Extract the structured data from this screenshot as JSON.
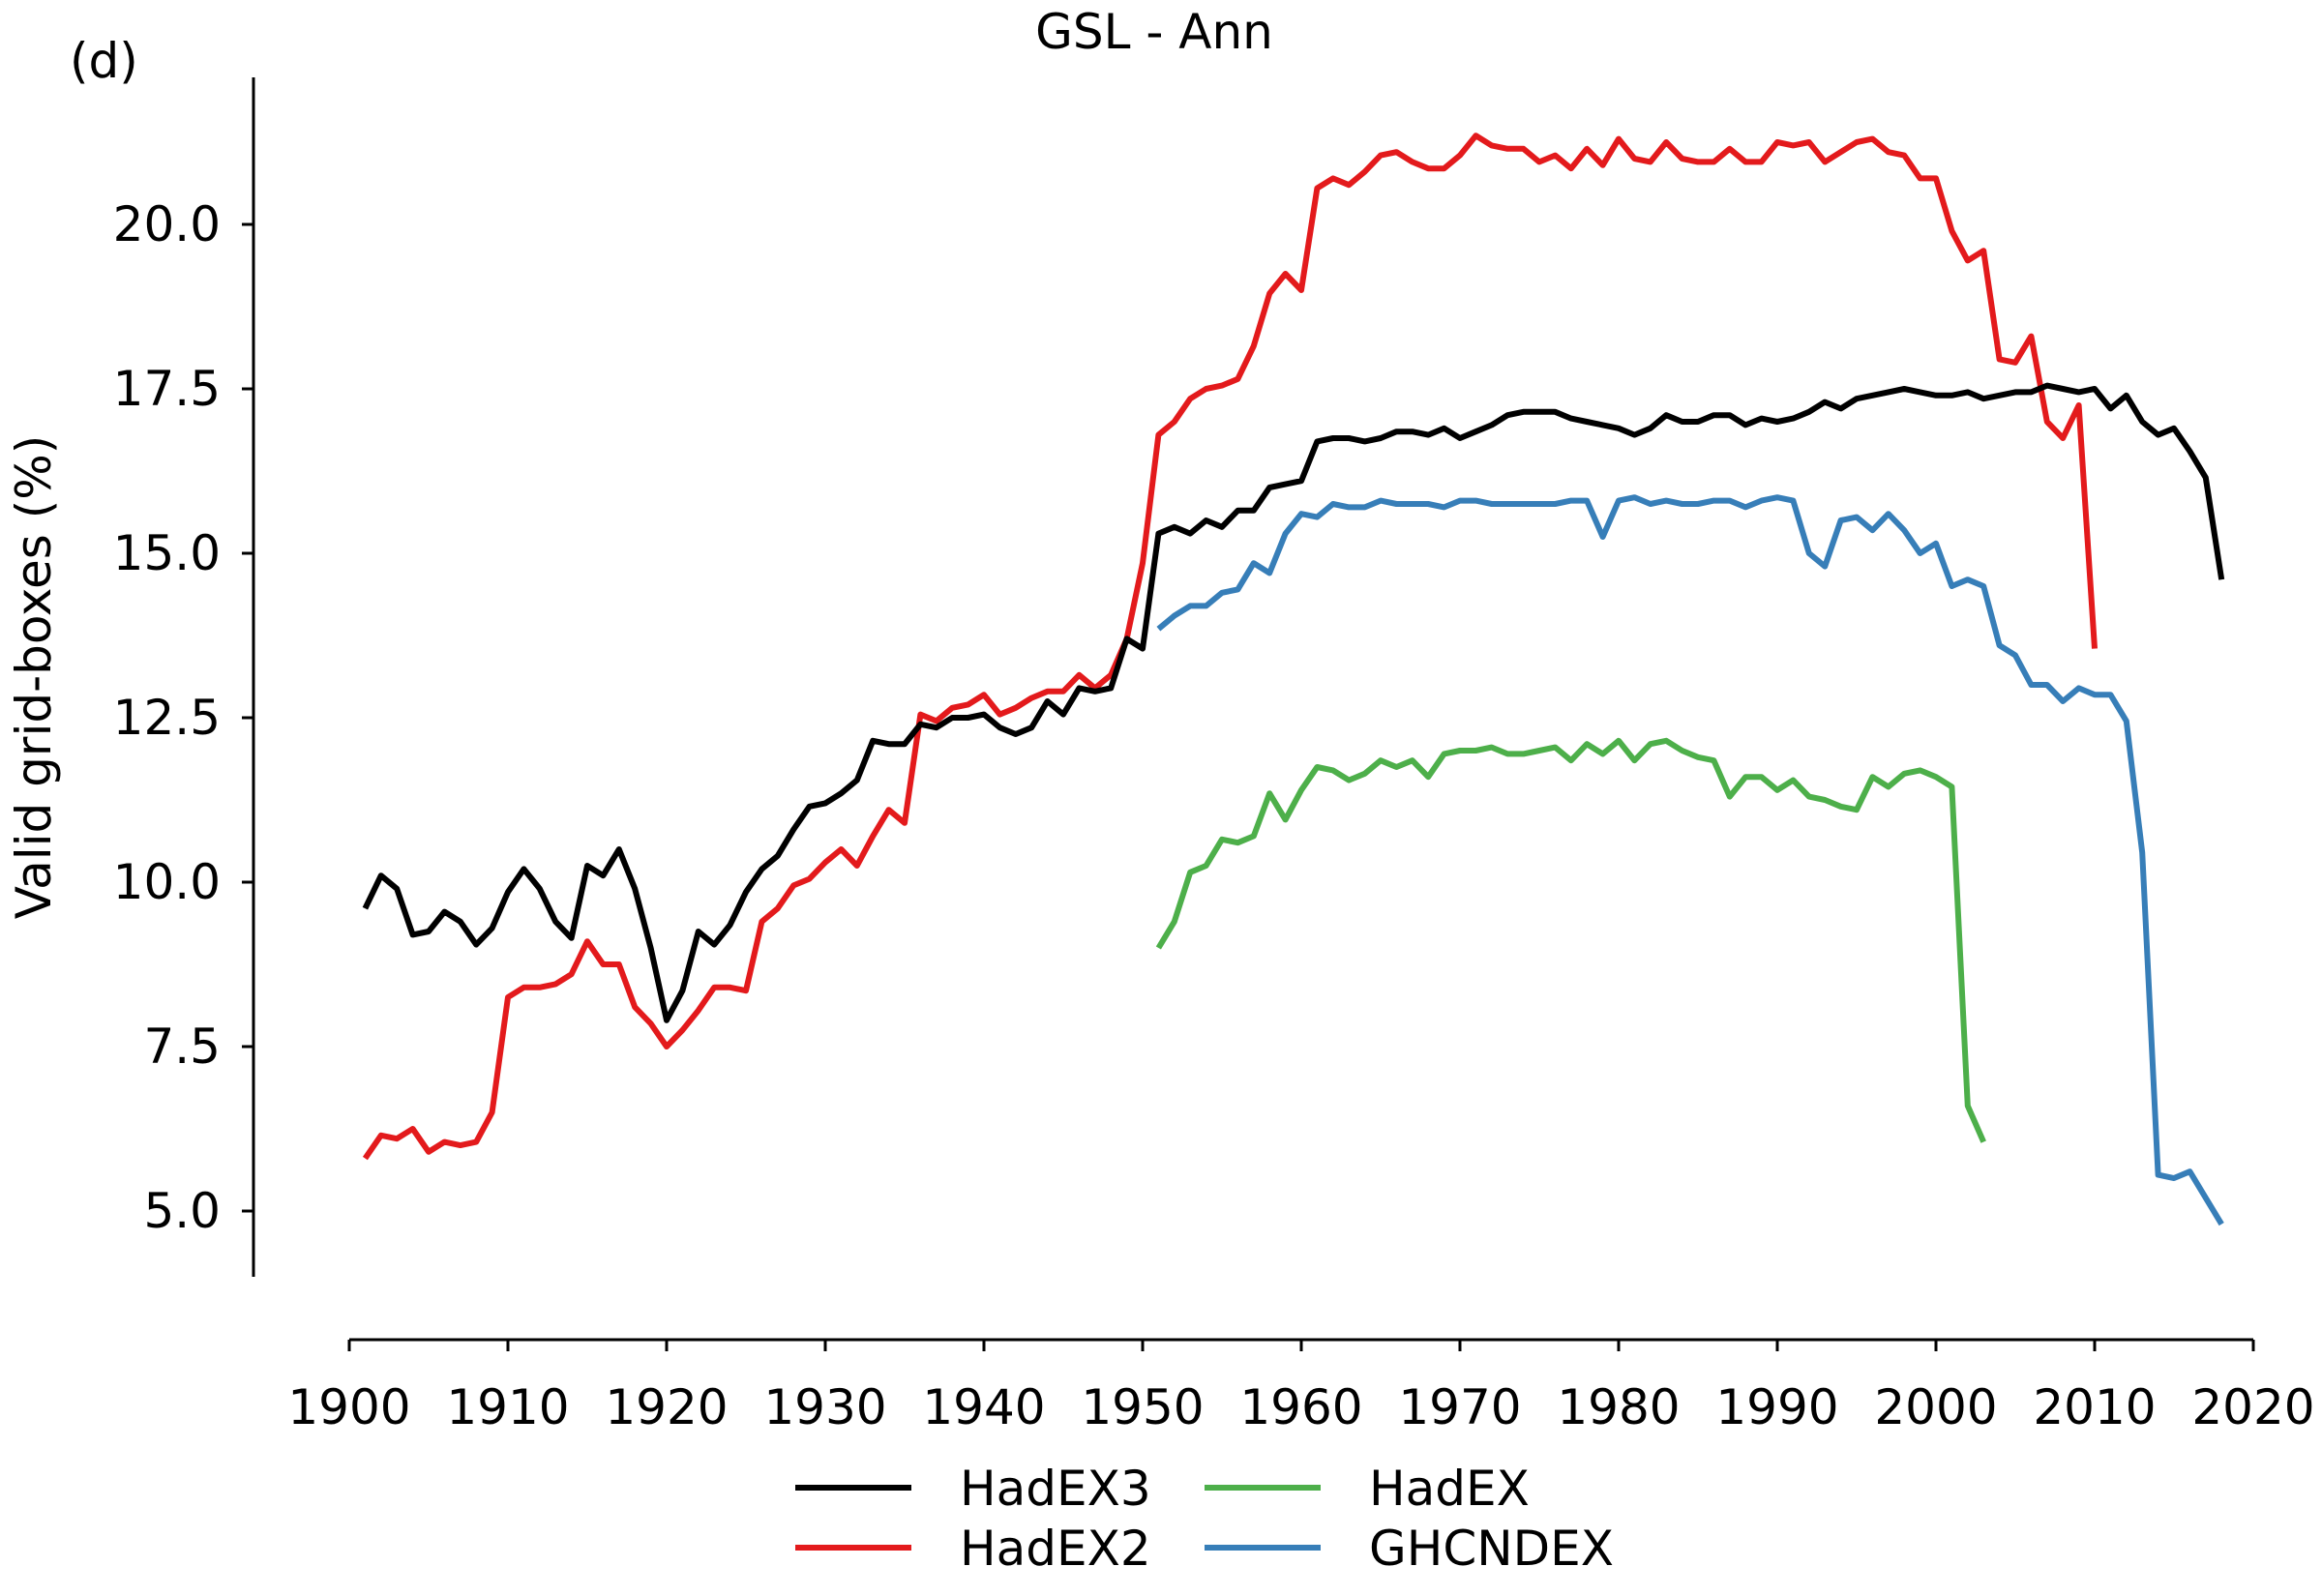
{
  "panel_label": "(d)",
  "chart_data": {
    "type": "line",
    "title": "GSL - Ann",
    "xlabel": "",
    "ylabel": "Valid grid-boxes (%)",
    "xlim": [
      1900,
      2020
    ],
    "ylim": [
      4.0,
      22.2
    ],
    "x_ticks": [
      1900,
      1910,
      1920,
      1930,
      1940,
      1950,
      1960,
      1970,
      1980,
      1990,
      2000,
      2010,
      2020
    ],
    "y_ticks": [
      5.0,
      7.5,
      10.0,
      12.5,
      15.0,
      17.5,
      20.0
    ],
    "x_tick_labels": [
      "1900",
      "1910",
      "1920",
      "1930",
      "1940",
      "1950",
      "1960",
      "1970",
      "1980",
      "1990",
      "2000",
      "2010",
      "2020"
    ],
    "y_tick_labels": [
      "5.0",
      "7.5",
      "10.0",
      "12.5",
      "15.0",
      "17.5",
      "20.0"
    ],
    "grid": false,
    "legend_position": "bottom",
    "series": [
      {
        "name": "HadEX3",
        "color": "#000000",
        "x_start": 1901,
        "values": [
          9.6,
          10.1,
          9.9,
          9.2,
          9.25,
          9.55,
          9.4,
          9.05,
          9.3,
          9.85,
          10.2,
          9.9,
          9.4,
          9.15,
          10.25,
          10.1,
          10.5,
          9.9,
          9.0,
          7.9,
          8.35,
          9.25,
          9.05,
          9.35,
          9.85,
          10.2,
          10.4,
          10.8,
          11.15,
          11.2,
          11.35,
          11.55,
          12.15,
          12.1,
          12.1,
          12.4,
          12.35,
          12.5,
          12.5,
          12.55,
          12.35,
          12.25,
          12.35,
          12.75,
          12.55,
          12.95,
          12.9,
          12.95,
          13.7,
          13.55,
          15.3,
          15.4,
          15.3,
          15.5,
          15.4,
          15.65,
          15.65,
          16.0,
          16.05,
          16.1,
          16.7,
          16.75,
          16.75,
          16.7,
          16.75,
          16.85,
          16.85,
          16.8,
          16.9,
          16.75,
          16.85,
          16.95,
          17.1,
          17.15,
          17.15,
          17.15,
          17.05,
          17.0,
          16.95,
          16.9,
          16.8,
          16.9,
          17.1,
          17.0,
          17.0,
          17.1,
          17.1,
          16.95,
          17.05,
          17.0,
          17.05,
          17.15,
          17.3,
          17.2,
          17.35,
          17.4,
          17.45,
          17.5,
          17.45,
          17.4,
          17.4,
          17.45,
          17.35,
          17.4,
          17.45,
          17.45,
          17.55,
          17.5,
          17.45,
          17.5,
          17.2,
          17.4,
          17.0,
          16.8,
          16.9,
          16.55,
          16.15,
          14.6
        ]
      },
      {
        "name": "HadEX2",
        "color": "#e31a1c",
        "x_start": 1901,
        "values": [
          5.8,
          6.15,
          6.1,
          6.25,
          5.9,
          6.05,
          6.0,
          6.05,
          6.5,
          8.25,
          8.4,
          8.4,
          8.45,
          8.6,
          9.1,
          8.75,
          8.75,
          8.1,
          7.85,
          7.5,
          7.75,
          8.05,
          8.4,
          8.4,
          8.35,
          9.4,
          9.6,
          9.95,
          10.05,
          10.3,
          10.5,
          10.25,
          10.7,
          11.1,
          10.9,
          12.55,
          12.45,
          12.65,
          12.7,
          12.85,
          12.55,
          12.65,
          12.8,
          12.9,
          12.9,
          13.15,
          12.95,
          13.15,
          13.7,
          14.85,
          16.8,
          17.0,
          17.35,
          17.5,
          17.55,
          17.65,
          18.15,
          18.95,
          19.25,
          19.0,
          20.55,
          20.7,
          20.6,
          20.8,
          21.05,
          21.1,
          20.95,
          20.85,
          20.85,
          21.05,
          21.35,
          21.2,
          21.15,
          21.15,
          20.95,
          21.05,
          20.85,
          21.15,
          20.9,
          21.3,
          21.0,
          20.95,
          21.25,
          21.0,
          20.95,
          20.95,
          21.15,
          20.95,
          20.95,
          21.25,
          21.2,
          21.25,
          20.95,
          21.1,
          21.25,
          21.3,
          21.1,
          21.05,
          20.7,
          20.7,
          19.9,
          19.45,
          19.6,
          17.95,
          17.9,
          18.3,
          17.0,
          16.75,
          17.25,
          13.55
        ]
      },
      {
        "name": "HadEX",
        "color": "#4daf4a",
        "x_start": 1951,
        "values": [
          9.0,
          9.4,
          10.15,
          10.25,
          10.65,
          10.6,
          10.7,
          11.35,
          10.95,
          11.4,
          11.75,
          11.7,
          11.55,
          11.65,
          11.85,
          11.75,
          11.85,
          11.6,
          11.95,
          12.0,
          12.0,
          12.05,
          11.95,
          11.95,
          12.0,
          12.05,
          11.85,
          12.1,
          11.95,
          12.15,
          11.85,
          12.1,
          12.15,
          12.0,
          11.9,
          11.85,
          11.3,
          11.6,
          11.6,
          11.4,
          11.55,
          11.3,
          11.25,
          11.15,
          11.1,
          11.6,
          11.45,
          11.65,
          11.7,
          11.6,
          11.45,
          6.6,
          6.05
        ]
      },
      {
        "name": "GHCNDEX",
        "color": "#377eb8",
        "x_start": 1951,
        "values": [
          13.85,
          14.05,
          14.2,
          14.2,
          14.4,
          14.45,
          14.85,
          14.7,
          15.3,
          15.6,
          15.55,
          15.75,
          15.7,
          15.7,
          15.8,
          15.75,
          15.75,
          15.75,
          15.7,
          15.8,
          15.8,
          15.75,
          15.75,
          15.75,
          15.75,
          15.75,
          15.8,
          15.8,
          15.25,
          15.8,
          15.85,
          15.75,
          15.8,
          15.75,
          15.75,
          15.8,
          15.8,
          15.7,
          15.8,
          15.85,
          15.8,
          15.0,
          14.8,
          15.5,
          15.55,
          15.35,
          15.6,
          15.35,
          15.0,
          15.15,
          14.5,
          14.6,
          14.5,
          13.6,
          13.45,
          13.0,
          13.0,
          12.75,
          12.95,
          12.85,
          12.85,
          12.45,
          10.45,
          5.55,
          5.5,
          5.6,
          5.2,
          4.8
        ]
      }
    ]
  }
}
